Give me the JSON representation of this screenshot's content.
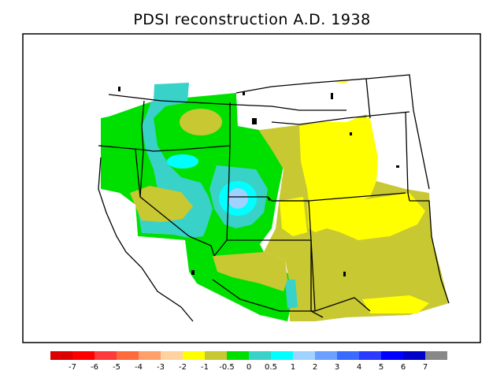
{
  "title": "PDSI reconstruction A.D. 1938",
  "colors": {
    "frame": "#000000",
    "background": "#ffffff",
    "c_m7": "#dd0000",
    "c_m6": "#ff0000",
    "c_m5": "#ff3a3a",
    "c_m4": "#ff6a3a",
    "c_m3": "#ff9f6a",
    "c_m2": "#ffd2a0",
    "c_m1": "#ffff00",
    "c_m05": "#c8c832",
    "c_0": "#00e000",
    "c_05": "#38d2c8",
    "c_1": "#00ffff",
    "c_2": "#a0d2ff",
    "c_3": "#6aa0ff",
    "c_4": "#3a6aff",
    "c_5": "#2a3aff",
    "c_6": "#0000ff",
    "c_7": "#0000c8",
    "c_over": "#888888"
  },
  "legend": {
    "labels": [
      "-7",
      "-6",
      "-5",
      "-4",
      "-3",
      "-2",
      "-1",
      "-0.5",
      "0",
      "0.5",
      "1",
      "2",
      "3",
      "4",
      "5",
      "6",
      "7"
    ],
    "swatches": [
      "c_m7",
      "c_m6",
      "c_m5",
      "c_m4",
      "c_m3",
      "c_m2",
      "c_m1",
      "c_m05",
      "c_0",
      "c_05",
      "c_1",
      "c_2",
      "c_3",
      "c_4",
      "c_5",
      "c_6",
      "c_7",
      "c_over"
    ]
  }
}
